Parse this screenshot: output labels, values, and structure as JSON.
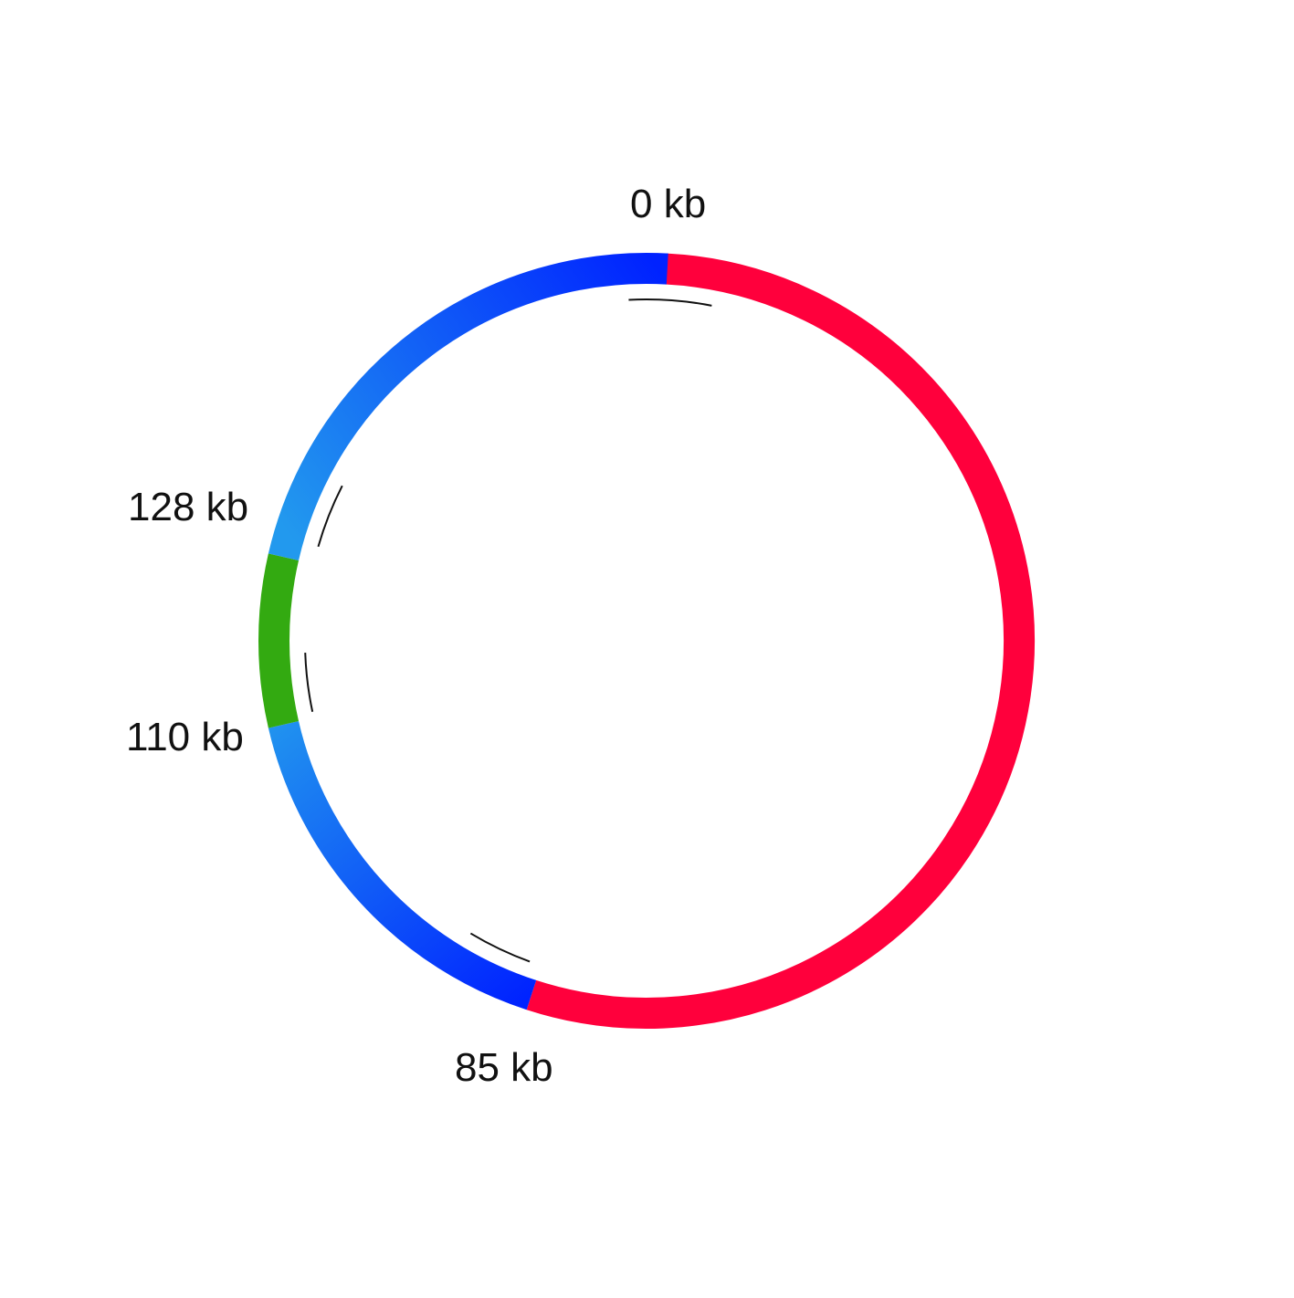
{
  "diagram": {
    "labels": {
      "pos_0": "0 kb",
      "pos_128": "128 kb",
      "pos_110": "110 kb",
      "pos_85": "85 kb"
    },
    "colors": {
      "red_segment": "#ff003c",
      "blue_dark": "#0022ff",
      "blue_light": "#2299ee",
      "green_segment": "#33aa11",
      "inner_arcs": "#111111",
      "background": "#ffffff"
    }
  }
}
